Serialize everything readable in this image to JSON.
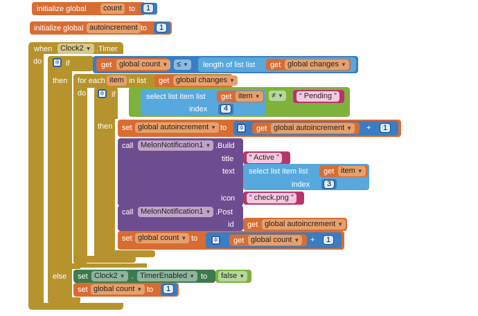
{
  "blocks": {
    "init_count": {
      "keyword": "initialize global",
      "var": "count",
      "to": "to",
      "value": "1"
    },
    "init_auto": {
      "keyword": "initialize global",
      "var": "autoincrement",
      "to": "to",
      "value": "1"
    },
    "when": {
      "keyword": "when",
      "component": "Clock2",
      "event": ".Timer",
      "do": "do"
    },
    "if1": {
      "keyword": "if",
      "get": "get",
      "var": "global count",
      "op": "≤",
      "length_label": "length of list  list",
      "get2": "get",
      "var2": "global changes"
    },
    "then": "then",
    "else": "else",
    "foreach": {
      "keyword": "for each",
      "item": "item",
      "in_list": "in list",
      "get": "get",
      "var": "global changes",
      "do": "do"
    },
    "if2": {
      "keyword": "if",
      "select_label": "select list item  list",
      "get": "get",
      "var": "item",
      "index_label": "index",
      "index": "4",
      "op": "≠",
      "text": "Pending"
    },
    "then2": "then",
    "set1": {
      "set": "set",
      "var": "global autoincrement",
      "to": "to",
      "get": "get",
      "var2": "global autoincrement",
      "plus": "+",
      "value": "1"
    },
    "build": {
      "call": "call",
      "component": "MelonNotification1",
      "method": ".Build",
      "title_label": "title",
      "title": "Active",
      "text_label": "text",
      "select_label": "select list item  list",
      "get": "get",
      "var": "item",
      "index_label": "index",
      "index": "3",
      "icon_label": "icon",
      "icon": "check.png"
    },
    "post": {
      "call": "call",
      "component": "MelonNotification1",
      "method": ".Post",
      "id_label": "id",
      "get": "get",
      "var": "global autoincrement"
    },
    "set2": {
      "set": "set",
      "var": "global count",
      "to": "to",
      "get": "get",
      "var2": "global count",
      "plus": "+",
      "value": "1"
    },
    "else_set1": {
      "set": "set",
      "component": "Clock2",
      "dot": ".",
      "prop": "TimerEnabled",
      "to": "to",
      "value": "false"
    },
    "else_set2": {
      "set": "set",
      "var": "global count",
      "to": "to",
      "value": "1"
    }
  },
  "colors": {
    "variable": "#d86d33",
    "control": "#b6932c",
    "math": "#3b7dc2",
    "list": "#57a8dc",
    "logic": "#6fb04e",
    "component_call": "#6c4d8f",
    "text": "#b8356b",
    "component_set": "#3d7a4c"
  },
  "icons": {
    "mutator": "gear-icon",
    "dropdown": "dropdown-arrow-icon"
  }
}
